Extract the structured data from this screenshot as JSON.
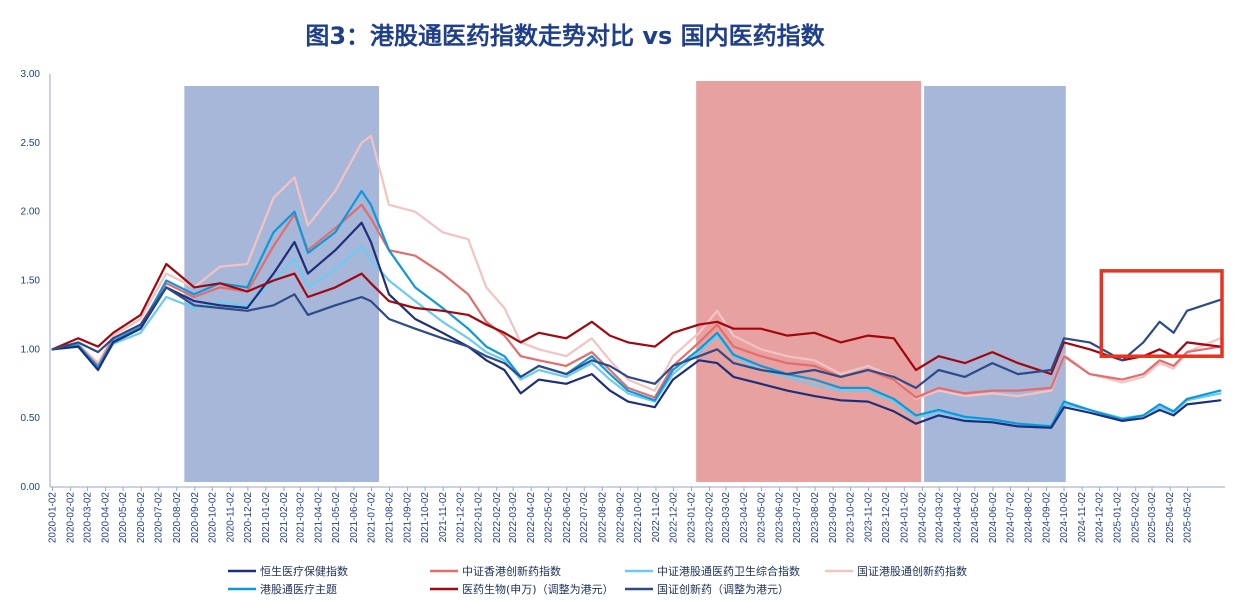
{
  "chart_data": {
    "type": "line",
    "title": "图3：港股通医药指数走势对比 vs 国内医药指数",
    "xlabel": "",
    "ylabel": "",
    "ylim": [
      0,
      3
    ],
    "yticks": [
      "0.00",
      "0.50",
      "1.00",
      "1.50",
      "2.00",
      "2.50",
      "3.00"
    ],
    "xdomain": [
      "2020-01-01",
      "2025-06-30"
    ],
    "xticks": [
      "2020-01-02",
      "2020-02-02",
      "2020-03-02",
      "2020-04-02",
      "2020-05-02",
      "2020-06-02",
      "2020-07-02",
      "2020-08-02",
      "2020-09-02",
      "2020-10-02",
      "2020-11-02",
      "2020-12-02",
      "2021-01-02",
      "2021-02-02",
      "2021-03-02",
      "2021-04-02",
      "2021-05-02",
      "2021-06-02",
      "2021-07-02",
      "2021-08-02",
      "2021-09-02",
      "2021-10-02",
      "2021-11-02",
      "2021-12-02",
      "2022-01-02",
      "2022-02-02",
      "2022-03-02",
      "2022-04-02",
      "2022-05-02",
      "2022-06-02",
      "2022-07-02",
      "2022-08-02",
      "2022-09-02",
      "2022-10-02",
      "2022-11-02",
      "2022-12-02",
      "2023-01-02",
      "2023-02-02",
      "2023-03-02",
      "2023-04-02",
      "2023-05-02",
      "2023-06-02",
      "2023-07-02",
      "2023-08-02",
      "2023-09-02",
      "2023-10-02",
      "2023-11-02",
      "2023-12-02",
      "2024-01-02",
      "2024-02-02",
      "2024-03-02",
      "2024-04-02",
      "2024-05-02",
      "2024-06-02",
      "2024-07-02",
      "2024-08-02",
      "2024-09-02",
      "2024-10-02",
      "2024-11-02",
      "2024-12-02",
      "2025-01-02",
      "2025-02-02",
      "2025-03-02",
      "2025-04-02",
      "2025-05-02"
    ],
    "shaded_periods": [
      {
        "start": "2020-08-15",
        "end": "2021-07-15",
        "color": "#98aad3"
      },
      {
        "start": "2023-01-10",
        "end": "2024-01-31",
        "color": "#e3908f"
      },
      {
        "start": "2024-02-05",
        "end": "2024-10-05",
        "color": "#98aad3"
      }
    ],
    "highlight_box": {
      "start": "2024-12-05",
      "end": "2025-06-30",
      "y_range": [
        0.95,
        1.57
      ],
      "color": "#e8331f"
    },
    "grid": false,
    "legend_position": "bottom",
    "series": [
      {
        "name": "恒生医疗保健指数",
        "color": "#1c2f7a",
        "x": [
          "2020-01-02",
          "2020-02-15",
          "2020-03-20",
          "2020-04-15",
          "2020-06-01",
          "2020-07-15",
          "2020-09-01",
          "2020-10-15",
          "2020-12-01",
          "2021-01-15",
          "2021-02-20",
          "2021-03-15",
          "2021-05-01",
          "2021-06-15",
          "2021-07-01",
          "2021-08-01",
          "2021-09-15",
          "2021-11-01",
          "2021-12-15",
          "2022-01-15",
          "2022-02-15",
          "2022-03-15",
          "2022-04-15",
          "2022-06-01",
          "2022-07-15",
          "2022-08-15",
          "2022-09-15",
          "2022-10-31",
          "2022-12-01",
          "2023-01-15",
          "2023-02-15",
          "2023-03-15",
          "2023-05-01",
          "2023-06-15",
          "2023-08-01",
          "2023-09-15",
          "2023-11-01",
          "2023-12-15",
          "2024-01-22",
          "2024-03-01",
          "2024-04-15",
          "2024-06-01",
          "2024-07-15",
          "2024-09-10",
          "2024-10-02",
          "2024-11-15",
          "2025-01-10",
          "2025-02-15",
          "2025-03-15",
          "2025-04-08",
          "2025-05-01",
          "2025-06-27"
        ],
        "y": [
          1.0,
          1.02,
          0.85,
          1.05,
          1.15,
          1.45,
          1.35,
          1.32,
          1.3,
          1.55,
          1.78,
          1.55,
          1.72,
          1.92,
          1.78,
          1.4,
          1.22,
          1.12,
          1.02,
          0.92,
          0.85,
          0.68,
          0.78,
          0.75,
          0.82,
          0.7,
          0.62,
          0.58,
          0.78,
          0.92,
          0.9,
          0.8,
          0.75,
          0.7,
          0.66,
          0.63,
          0.62,
          0.55,
          0.46,
          0.52,
          0.48,
          0.47,
          0.44,
          0.43,
          0.58,
          0.54,
          0.48,
          0.5,
          0.56,
          0.52,
          0.6,
          0.63
        ]
      },
      {
        "name": "中证香港创新药指数",
        "color": "#e46c6c",
        "x": [
          "2020-01-02",
          "2020-02-15",
          "2020-03-20",
          "2020-04-15",
          "2020-06-01",
          "2020-07-15",
          "2020-09-01",
          "2020-10-15",
          "2020-12-01",
          "2021-01-15",
          "2021-02-20",
          "2021-03-15",
          "2021-05-01",
          "2021-06-15",
          "2021-07-01",
          "2021-08-01",
          "2021-09-15",
          "2021-11-01",
          "2021-12-15",
          "2022-01-15",
          "2022-02-15",
          "2022-03-15",
          "2022-04-15",
          "2022-06-01",
          "2022-07-15",
          "2022-08-15",
          "2022-09-15",
          "2022-10-31",
          "2022-12-01",
          "2023-01-15",
          "2023-02-15",
          "2023-03-15",
          "2023-05-01",
          "2023-06-15",
          "2023-08-01",
          "2023-09-15",
          "2023-11-01",
          "2023-12-15",
          "2024-01-22",
          "2024-03-01",
          "2024-04-15",
          "2024-06-01",
          "2024-07-15",
          "2024-09-10",
          "2024-10-02",
          "2024-11-15",
          "2025-01-10",
          "2025-02-15",
          "2025-03-15",
          "2025-04-08",
          "2025-05-01",
          "2025-06-27"
        ],
        "y": [
          1.0,
          1.03,
          0.88,
          1.08,
          1.18,
          1.48,
          1.38,
          1.45,
          1.42,
          1.75,
          1.98,
          1.72,
          1.88,
          2.05,
          1.95,
          1.72,
          1.68,
          1.55,
          1.4,
          1.2,
          1.1,
          0.95,
          0.92,
          0.88,
          0.98,
          0.85,
          0.72,
          0.65,
          0.88,
          1.05,
          1.18,
          1.02,
          0.95,
          0.9,
          0.88,
          0.8,
          0.85,
          0.78,
          0.65,
          0.72,
          0.68,
          0.7,
          0.7,
          0.72,
          0.95,
          0.82,
          0.78,
          0.82,
          0.92,
          0.88,
          0.98,
          1.02
        ]
      },
      {
        "name": "中证港股通医药卫生综合指数",
        "color": "#6ccbf0",
        "x": [
          "2020-01-02",
          "2020-02-15",
          "2020-03-20",
          "2020-04-15",
          "2020-06-01",
          "2020-07-15",
          "2020-09-01",
          "2020-10-15",
          "2020-12-01",
          "2021-01-15",
          "2021-02-20",
          "2021-03-15",
          "2021-05-01",
          "2021-06-15",
          "2021-07-01",
          "2021-08-01",
          "2021-09-15",
          "2021-11-01",
          "2021-12-15",
          "2022-01-15",
          "2022-02-15",
          "2022-03-15",
          "2022-04-15",
          "2022-06-01",
          "2022-07-15",
          "2022-08-15",
          "2022-09-15",
          "2022-10-31",
          "2022-12-01",
          "2023-01-15",
          "2023-02-15",
          "2023-03-15",
          "2023-05-01",
          "2023-06-15",
          "2023-08-01",
          "2023-09-15",
          "2023-11-01",
          "2023-12-15",
          "2024-01-22",
          "2024-03-01",
          "2024-04-15",
          "2024-06-01",
          "2024-07-15",
          "2024-09-10",
          "2024-10-02",
          "2024-11-15",
          "2025-01-10",
          "2025-02-15",
          "2025-03-15",
          "2025-04-08",
          "2025-05-01",
          "2025-06-27"
        ],
        "y": [
          1.0,
          1.02,
          0.86,
          1.04,
          1.12,
          1.38,
          1.3,
          1.34,
          1.32,
          1.5,
          1.66,
          1.45,
          1.58,
          1.75,
          1.65,
          1.5,
          1.35,
          1.2,
          1.08,
          0.98,
          0.92,
          0.78,
          0.85,
          0.8,
          0.9,
          0.78,
          0.68,
          0.62,
          0.82,
          0.98,
          1.1,
          0.95,
          0.85,
          0.8,
          0.74,
          0.7,
          0.7,
          0.62,
          0.5,
          0.55,
          0.5,
          0.48,
          0.46,
          0.45,
          0.6,
          0.56,
          0.5,
          0.52,
          0.58,
          0.54,
          0.63,
          0.68
        ]
      },
      {
        "name": "国证港股通创新药指数",
        "color": "#f3c3c3",
        "x": [
          "2020-01-02",
          "2020-02-15",
          "2020-03-20",
          "2020-04-15",
          "2020-06-01",
          "2020-07-15",
          "2020-09-01",
          "2020-10-15",
          "2020-12-01",
          "2021-01-15",
          "2021-02-20",
          "2021-03-15",
          "2021-05-01",
          "2021-06-15",
          "2021-07-01",
          "2021-08-01",
          "2021-09-15",
          "2021-11-01",
          "2021-12-15",
          "2022-01-15",
          "2022-02-15",
          "2022-03-15",
          "2022-04-15",
          "2022-06-01",
          "2022-07-15",
          "2022-08-15",
          "2022-09-15",
          "2022-10-31",
          "2022-12-01",
          "2023-01-15",
          "2023-02-15",
          "2023-03-15",
          "2023-05-01",
          "2023-06-15",
          "2023-08-01",
          "2023-09-15",
          "2023-11-01",
          "2023-12-15",
          "2024-01-22",
          "2024-03-01",
          "2024-04-15",
          "2024-06-01",
          "2024-07-15",
          "2024-09-10",
          "2024-10-02",
          "2024-11-15",
          "2025-01-10",
          "2025-02-15",
          "2025-03-15",
          "2025-04-08",
          "2025-05-01",
          "2025-06-27"
        ],
        "y": [
          1.0,
          1.04,
          0.9,
          1.1,
          1.22,
          1.55,
          1.45,
          1.6,
          1.62,
          2.1,
          2.25,
          1.9,
          2.15,
          2.5,
          2.55,
          2.05,
          2.0,
          1.85,
          1.8,
          1.45,
          1.3,
          1.05,
          1.0,
          0.95,
          1.08,
          0.92,
          0.78,
          0.7,
          0.95,
          1.12,
          1.28,
          1.1,
          1.0,
          0.95,
          0.92,
          0.82,
          0.88,
          0.8,
          0.64,
          0.7,
          0.66,
          0.68,
          0.66,
          0.7,
          0.96,
          0.82,
          0.76,
          0.8,
          0.9,
          0.86,
          0.98,
          1.08
        ]
      },
      {
        "name": "港股通医疗主题",
        "color": "#0f97d8",
        "x": [
          "2020-01-02",
          "2020-02-15",
          "2020-03-20",
          "2020-04-15",
          "2020-06-01",
          "2020-07-15",
          "2020-09-01",
          "2020-10-15",
          "2020-12-01",
          "2021-01-15",
          "2021-02-20",
          "2021-03-15",
          "2021-05-01",
          "2021-06-15",
          "2021-07-01",
          "2021-08-01",
          "2021-09-15",
          "2021-11-01",
          "2021-12-15",
          "2022-01-15",
          "2022-02-15",
          "2022-03-15",
          "2022-04-15",
          "2022-06-01",
          "2022-07-15",
          "2022-08-15",
          "2022-09-15",
          "2022-10-31",
          "2022-12-01",
          "2023-01-15",
          "2023-02-15",
          "2023-03-15",
          "2023-05-01",
          "2023-06-15",
          "2023-08-01",
          "2023-09-15",
          "2023-11-01",
          "2023-12-15",
          "2024-01-22",
          "2024-03-01",
          "2024-04-15",
          "2024-06-01",
          "2024-07-15",
          "2024-09-10",
          "2024-10-02",
          "2024-11-15",
          "2025-01-10",
          "2025-02-15",
          "2025-03-15",
          "2025-04-08",
          "2025-05-01",
          "2025-06-27"
        ],
        "y": [
          1.0,
          1.03,
          0.87,
          1.06,
          1.16,
          1.5,
          1.4,
          1.48,
          1.45,
          1.85,
          2.0,
          1.7,
          1.85,
          2.15,
          2.05,
          1.72,
          1.45,
          1.3,
          1.15,
          1.02,
          0.95,
          0.8,
          0.88,
          0.82,
          0.95,
          0.82,
          0.7,
          0.63,
          0.85,
          1.0,
          1.12,
          0.96,
          0.88,
          0.82,
          0.78,
          0.72,
          0.72,
          0.64,
          0.52,
          0.56,
          0.51,
          0.49,
          0.46,
          0.44,
          0.62,
          0.56,
          0.49,
          0.52,
          0.6,
          0.55,
          0.64,
          0.7
        ]
      },
      {
        "name": "医药生物(申万)（调整为港元）",
        "color": "#a1070f",
        "x": [
          "2020-01-02",
          "2020-02-15",
          "2020-03-20",
          "2020-04-15",
          "2020-06-01",
          "2020-07-15",
          "2020-09-01",
          "2020-10-15",
          "2020-12-01",
          "2021-01-15",
          "2021-02-20",
          "2021-03-15",
          "2021-05-01",
          "2021-06-15",
          "2021-07-01",
          "2021-08-01",
          "2021-09-15",
          "2021-11-01",
          "2021-12-15",
          "2022-01-15",
          "2022-02-15",
          "2022-03-15",
          "2022-04-15",
          "2022-06-01",
          "2022-07-15",
          "2022-08-15",
          "2022-09-15",
          "2022-10-31",
          "2022-12-01",
          "2023-01-15",
          "2023-02-15",
          "2023-03-15",
          "2023-05-01",
          "2023-06-15",
          "2023-08-01",
          "2023-09-15",
          "2023-11-01",
          "2023-12-15",
          "2024-01-22",
          "2024-03-01",
          "2024-04-15",
          "2024-06-01",
          "2024-07-15",
          "2024-09-10",
          "2024-10-02",
          "2024-11-15",
          "2025-01-10",
          "2025-02-15",
          "2025-03-15",
          "2025-04-08",
          "2025-05-01",
          "2025-06-27"
        ],
        "y": [
          1.0,
          1.08,
          1.02,
          1.12,
          1.25,
          1.62,
          1.45,
          1.48,
          1.42,
          1.5,
          1.55,
          1.38,
          1.45,
          1.55,
          1.48,
          1.35,
          1.3,
          1.28,
          1.25,
          1.18,
          1.12,
          1.05,
          1.12,
          1.08,
          1.2,
          1.1,
          1.05,
          1.02,
          1.12,
          1.18,
          1.2,
          1.15,
          1.15,
          1.1,
          1.12,
          1.05,
          1.1,
          1.08,
          0.85,
          0.95,
          0.9,
          0.98,
          0.9,
          0.82,
          1.05,
          1.0,
          0.92,
          0.95,
          1.0,
          0.95,
          1.05,
          1.02
        ]
      },
      {
        "name": "国证创新药（调整为港元）",
        "color": "#2d4b87",
        "x": [
          "2020-01-02",
          "2020-02-15",
          "2020-03-20",
          "2020-04-15",
          "2020-06-01",
          "2020-07-15",
          "2020-09-01",
          "2020-10-15",
          "2020-12-01",
          "2021-01-15",
          "2021-02-20",
          "2021-03-15",
          "2021-05-01",
          "2021-06-15",
          "2021-07-01",
          "2021-08-01",
          "2021-09-15",
          "2021-11-01",
          "2021-12-15",
          "2022-01-15",
          "2022-02-15",
          "2022-03-15",
          "2022-04-15",
          "2022-06-01",
          "2022-07-15",
          "2022-08-15",
          "2022-09-15",
          "2022-10-31",
          "2022-12-01",
          "2023-01-15",
          "2023-02-15",
          "2023-03-15",
          "2023-05-01",
          "2023-06-15",
          "2023-08-01",
          "2023-09-15",
          "2023-11-01",
          "2023-12-15",
          "2024-01-22",
          "2024-03-01",
          "2024-04-15",
          "2024-06-01",
          "2024-07-15",
          "2024-09-10",
          "2024-10-02",
          "2024-11-15",
          "2025-01-10",
          "2025-02-15",
          "2025-03-15",
          "2025-04-08",
          "2025-05-01",
          "2025-06-27"
        ],
        "y": [
          1.0,
          1.05,
          0.98,
          1.08,
          1.18,
          1.45,
          1.32,
          1.3,
          1.28,
          1.32,
          1.4,
          1.25,
          1.32,
          1.38,
          1.35,
          1.22,
          1.15,
          1.08,
          1.02,
          0.95,
          0.9,
          0.8,
          0.88,
          0.82,
          0.92,
          0.88,
          0.8,
          0.75,
          0.88,
          0.95,
          1.0,
          0.9,
          0.85,
          0.82,
          0.85,
          0.8,
          0.85,
          0.8,
          0.72,
          0.85,
          0.8,
          0.9,
          0.82,
          0.85,
          1.08,
          1.05,
          0.92,
          1.05,
          1.2,
          1.12,
          1.28,
          1.36
        ]
      }
    ]
  }
}
